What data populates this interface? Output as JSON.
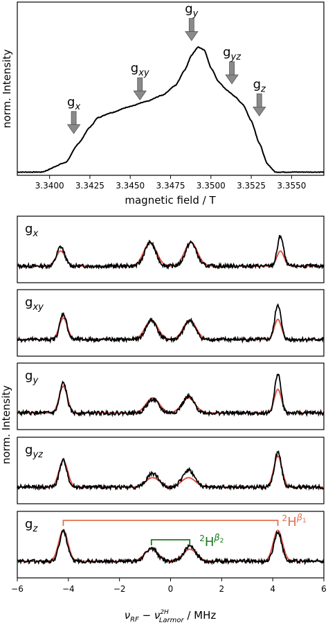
{
  "chart_data": [
    {
      "type": "line",
      "ylabel": "norm. Intensity",
      "xlabel": "magnetic field / T",
      "xlim": [
        3.338,
        3.357
      ],
      "ylim": [
        0,
        1.08
      ],
      "xticks": [
        "3.3400",
        "3.3425",
        "3.3450",
        "3.3475",
        "3.3500",
        "3.3525",
        "3.3550"
      ],
      "xtick_values": [
        3.34,
        3.3425,
        3.345,
        3.3475,
        3.35,
        3.3525,
        3.355
      ],
      "spectrum": {
        "x": [
          3.338,
          3.3395,
          3.341,
          3.3418,
          3.3425,
          3.343,
          3.3438,
          3.345,
          3.346,
          3.347,
          3.3478,
          3.3484,
          3.3488,
          3.3492,
          3.3496,
          3.35,
          3.3505,
          3.351,
          3.3515,
          3.352,
          3.3525,
          3.353,
          3.3535,
          3.354,
          3.357
        ],
        "y": [
          0.02,
          0.02,
          0.08,
          0.2,
          0.3,
          0.36,
          0.39,
          0.43,
          0.46,
          0.5,
          0.56,
          0.66,
          0.75,
          0.8,
          0.78,
          0.67,
          0.58,
          0.53,
          0.49,
          0.44,
          0.34,
          0.2,
          0.07,
          0.02,
          0.02
        ]
      },
      "annotations": [
        {
          "base": "g",
          "sub": "x",
          "x": 3.3415,
          "y": 0.26
        },
        {
          "base": "g",
          "sub": "xy",
          "x": 3.3456,
          "y": 0.47
        },
        {
          "base": "g",
          "sub": "y",
          "x": 3.3488,
          "y": 0.84
        },
        {
          "base": "g",
          "sub": "yz",
          "x": 3.3513,
          "y": 0.57
        },
        {
          "base": "g",
          "sub": "z",
          "x": 3.353,
          "y": 0.37
        }
      ]
    },
    {
      "type": "line",
      "ylabel": "norm. Intensity",
      "xlim": [
        -6,
        6
      ],
      "xticks": [
        "−6",
        "−4",
        "−2",
        "0",
        "2",
        "4",
        "6"
      ],
      "xtick_values": [
        -6,
        -4,
        -2,
        0,
        2,
        4,
        6
      ],
      "xlabel": {
        "nu": "ν",
        "rf": "RF",
        "minus": " − ",
        "sup": "2H",
        "larmor": "Larmor",
        "units": " / MHz"
      },
      "series_colors": {
        "experiment": "#000000",
        "simulation": "#e0554b"
      },
      "panels": [
        {
          "base": "g",
          "sub": "x",
          "peaks": [
            -4.3,
            -0.8,
            0.8,
            4.3
          ],
          "exp_amp": [
            0.45,
            0.55,
            0.55,
            0.7
          ],
          "sim_amp": [
            0.35,
            0.55,
            0.55,
            0.35
          ],
          "width": [
            0.18,
            0.25,
            0.25,
            0.14
          ]
        },
        {
          "base": "g",
          "sub": "xy",
          "peaks": [
            -4.2,
            -0.75,
            0.75,
            4.2
          ],
          "exp_amp": [
            0.6,
            0.45,
            0.45,
            0.82
          ],
          "sim_amp": [
            0.5,
            0.45,
            0.45,
            0.47
          ],
          "width": [
            0.16,
            0.25,
            0.25,
            0.14
          ]
        },
        {
          "base": "g",
          "sub": "y",
          "peaks": [
            -4.2,
            -0.7,
            0.7,
            4.2
          ],
          "exp_amp": [
            0.7,
            0.32,
            0.38,
            0.92
          ],
          "sim_amp": [
            0.62,
            0.35,
            0.35,
            0.55
          ],
          "width": [
            0.16,
            0.26,
            0.26,
            0.14
          ]
        },
        {
          "base": "g",
          "sub": "yz",
          "peaks": [
            -4.2,
            -0.7,
            0.7,
            4.2
          ],
          "exp_amp": [
            0.62,
            0.32,
            0.4,
            0.82
          ],
          "sim_amp": [
            0.62,
            0.22,
            0.22,
            0.72
          ],
          "width": [
            0.17,
            0.27,
            0.27,
            0.16
          ]
        },
        {
          "base": "g",
          "sub": "z",
          "peaks": [
            -4.2,
            -0.75,
            0.75,
            4.2
          ],
          "exp_amp": [
            0.7,
            0.3,
            0.34,
            0.68
          ],
          "sim_amp": [
            0.72,
            0.28,
            0.28,
            0.72
          ],
          "width": [
            0.18,
            0.27,
            0.27,
            0.18
          ]
        }
      ],
      "brackets": [
        {
          "label": "H",
          "presup": "2",
          "sup": "β",
          "supsub": "1",
          "x1": -4.2,
          "x2": 4.2,
          "color": "#e0704f"
        },
        {
          "label": "H",
          "presup": "2",
          "sup": "β",
          "supsub": "2",
          "x1": -0.75,
          "x2": 0.75,
          "color": "#1a7a1a"
        }
      ]
    }
  ]
}
